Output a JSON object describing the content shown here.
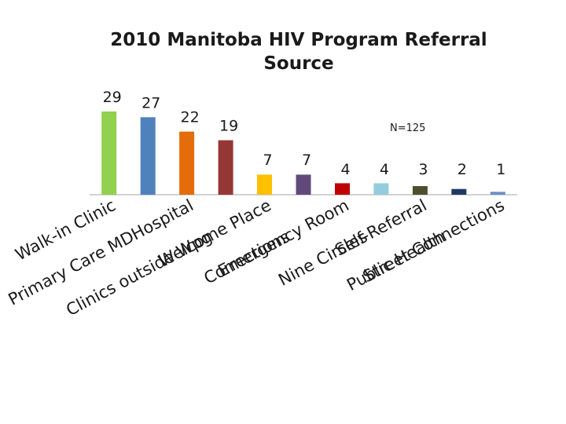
{
  "chart_data": {
    "type": "bar",
    "title": "2010 Manitoba HIV Program Referral Source",
    "xlabel": "",
    "ylabel": "",
    "ylim": [
      0,
      29
    ],
    "grid": false,
    "legend": "none",
    "annotation": "N=125",
    "categories": [
      "Walk-in Clinic",
      "Primary Care MD",
      "Hospital",
      "Clinics outside Wpg",
      "Welcome Place",
      "Corrections",
      "Emergency Room",
      "Nine Circles",
      "Self-Referral",
      "Public Health",
      "Street Connections"
    ],
    "values": [
      29,
      27,
      22,
      19,
      7,
      7,
      4,
      4,
      3,
      2,
      1
    ],
    "colors": [
      "#92d050",
      "#4f81bd",
      "#e46c0a",
      "#953735",
      "#ffc000",
      "#604a7b",
      "#c00000",
      "#93cddd",
      "#4f4f2f",
      "#1f3864",
      "#6a8fc4"
    ]
  }
}
